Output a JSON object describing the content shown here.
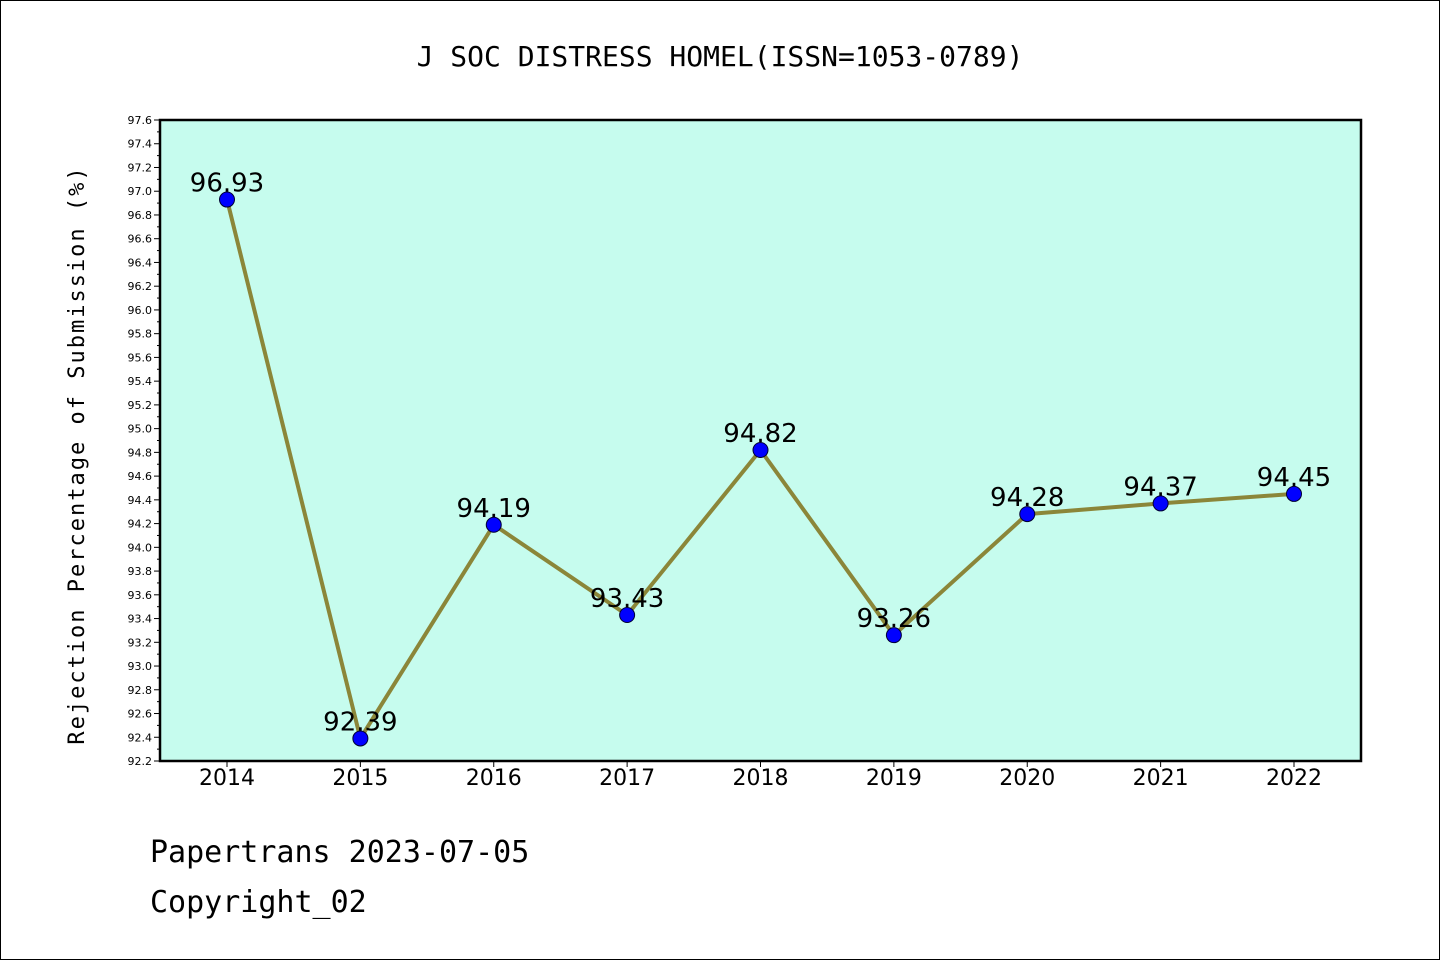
{
  "chart_data": {
    "type": "line",
    "title": "J SOC DISTRESS HOMEL(ISSN=1053-0789)",
    "xlabel": "",
    "ylabel": "Rejection Percentage of Submission (%)",
    "categories": [
      "2014",
      "2015",
      "2016",
      "2017",
      "2018",
      "2019",
      "2020",
      "2021",
      "2022"
    ],
    "series": [
      {
        "values": [
          96.93,
          92.39,
          94.19,
          93.43,
          94.82,
          93.26,
          94.28,
          94.37,
          94.45
        ],
        "data_labels": [
          "96.93",
          "92.39",
          "94.19",
          "93.43",
          "94.82",
          "93.26",
          "94.28",
          "94.37",
          "94.45"
        ]
      }
    ],
    "ylim": [
      92.2,
      97.6
    ],
    "yticks": [
      "92.2",
      "92.4",
      "92.6",
      "92.8",
      "93.0",
      "93.2",
      "93.4",
      "93.6",
      "93.8",
      "94.0",
      "94.2",
      "94.4",
      "94.6",
      "94.8",
      "95.0",
      "95.2",
      "95.4",
      "95.6",
      "95.8",
      "96.0",
      "96.2",
      "96.4",
      "96.6",
      "96.8",
      "97.0",
      "97.2",
      "97.4",
      "97.6"
    ],
    "grid": false,
    "legend": "none",
    "colors": {
      "plot_background": "#c6fcee",
      "line": "#8b8639",
      "marker": "#0000ff"
    }
  },
  "footer": {
    "date_text": "Papertrans 2023-07-05",
    "copyright_text": "Copyright_02"
  }
}
